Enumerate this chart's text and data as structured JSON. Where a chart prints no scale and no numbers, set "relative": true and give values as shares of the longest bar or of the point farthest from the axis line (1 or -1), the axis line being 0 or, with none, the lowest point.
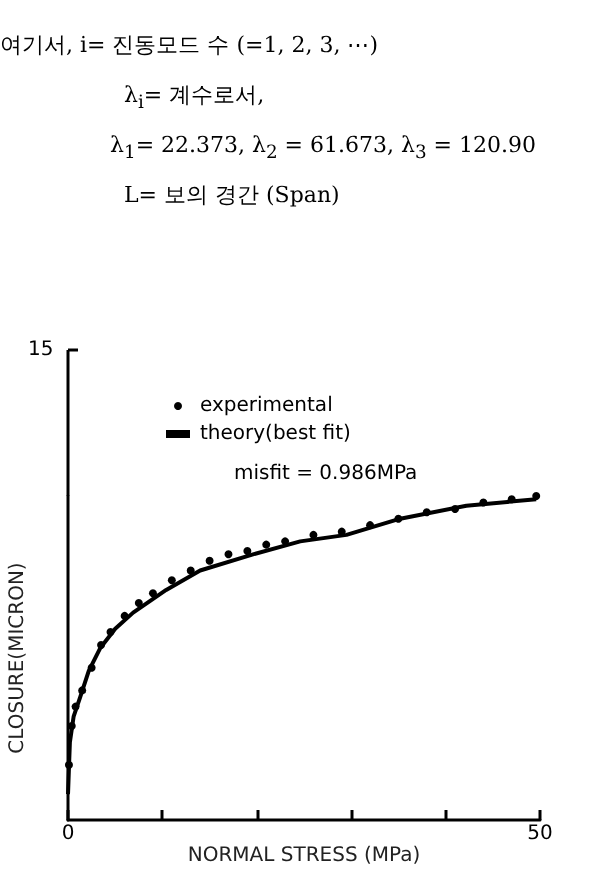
{
  "chart_data": {
    "type": "scatter",
    "annotations": [
      "여기서, i= 진동모드 수 (=1, 2, 3, ⋯)",
      "λ$_{i}$= 계수로서,",
      "λ$_{1}$= 22.373, λ$_{2}$ = 61.673, λ$_{3}$ = 120.90",
      "L= 보의 경간 (Span)",
      "misfit = 0.986MPa",
      "15"
    ],
    "xlabel": "NORMAL STRESS (MPa)",
    "ylabel": "CLOSURE(MICRON)",
    "xlim": [
      0,
      50
    ],
    "xticks": [
      0,
      {
        "value": 10,
        "label": null
      },
      {
        "value": 20,
        "label": null
      },
      {
        "value": 30,
        "label": null
      },
      {
        "value": 40,
        "label": null
      },
      50
    ],
    "relative": true,
    "legend": "top",
    "grid": false,
    "series": [
      {
        "name": "experimental",
        "marker": "circle",
        "color": "#000000",
        "x": [
          0.1,
          0.4,
          0.8,
          1.5,
          2.5,
          3.5,
          4.5,
          6,
          7.5,
          9,
          11,
          13,
          15,
          17,
          19,
          21,
          23,
          26,
          29,
          32,
          35,
          38,
          41,
          44,
          47,
          49.6
        ],
        "values": [
          0.17,
          0.29,
          0.35,
          0.4,
          0.47,
          0.54,
          0.58,
          0.63,
          0.67,
          0.7,
          0.74,
          0.77,
          0.8,
          0.82,
          0.83,
          0.85,
          0.86,
          0.88,
          0.89,
          0.91,
          0.93,
          0.95,
          0.96,
          0.98,
          0.99,
          1
        ]
      },
      {
        "name": "theory(best fit)",
        "type": "line",
        "marker": "none",
        "line_style": "solid",
        "color": "#000000",
        "x": [
          0,
          0.2,
          0.6,
          1.3,
          2.2,
          3.4,
          5,
          6.9,
          10.4,
          14,
          19.6,
          24.6,
          29.5,
          35.2,
          42.2,
          49.6
        ],
        "values": [
          0.08,
          0.24,
          0.32,
          0.38,
          0.46,
          0.53,
          0.59,
          0.64,
          0.71,
          0.77,
          0.82,
          0.86,
          0.88,
          0.93,
          0.97,
          0.99
        ]
      }
    ]
  }
}
